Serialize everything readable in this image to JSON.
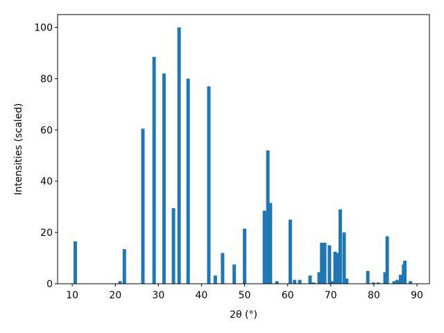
{
  "chart_data": {
    "type": "bar",
    "xlabel": "2θ (°)",
    "ylabel": "Intensities (scaled)",
    "x": [
      10.7,
      21.1,
      22.1,
      26.4,
      29.0,
      31.3,
      33.5,
      34.8,
      36.9,
      41.7,
      43.2,
      44.9,
      47.6,
      50.0,
      54.6,
      55.4,
      56.0,
      57.5,
      60.6,
      61.6,
      62.8,
      65.2,
      66.0,
      67.3,
      67.9,
      68.6,
      69.7,
      70.4,
      71.0,
      71.5,
      72.2,
      73.1,
      73.7,
      78.6,
      79.9,
      81.0,
      82.6,
      83.1,
      84.7,
      85.4,
      86.2,
      86.9,
      87.2,
      88.5
    ],
    "values": [
      16.5,
      1,
      13.5,
      60.5,
      88.5,
      82,
      29.5,
      100,
      80,
      77,
      3.2,
      12,
      7.5,
      21.5,
      28.5,
      52,
      31.5,
      1,
      25,
      1.5,
      1.5,
      3.2,
      0.5,
      4.5,
      16,
      16,
      15,
      1,
      12.5,
      12,
      29,
      20,
      2,
      5,
      0.5,
      0.5,
      4.5,
      18.5,
      1,
      1.5,
      3.5,
      7.5,
      9,
      1
    ],
    "color": "#1f77b4",
    "xlim": [
      6.6,
      92.9
    ],
    "xticks": [
      10,
      20,
      30,
      40,
      50,
      60,
      70,
      80,
      90
    ],
    "ylim": [
      0,
      105
    ],
    "yticks": [
      0,
      20,
      40,
      60,
      80,
      100
    ],
    "grid": false
  }
}
